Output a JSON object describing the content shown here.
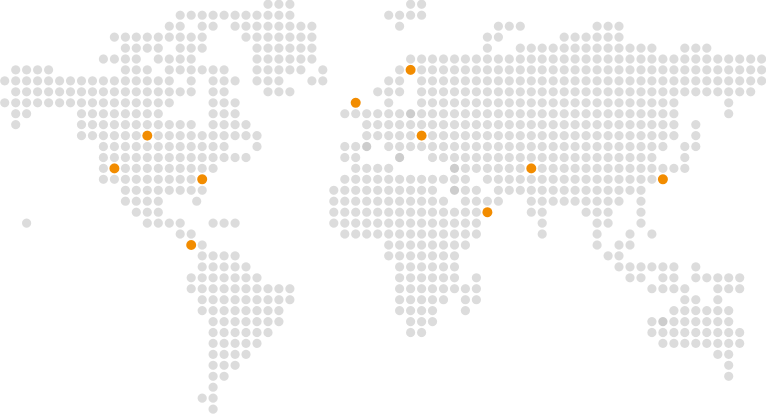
{
  "map": {
    "style": "dotted world map",
    "background_color": "#ffffff",
    "dot_color": "#dcdcdc",
    "dot_shade_color": "#cdcdcd",
    "marker_color": "#f28c00",
    "marker_count": 10
  }
}
